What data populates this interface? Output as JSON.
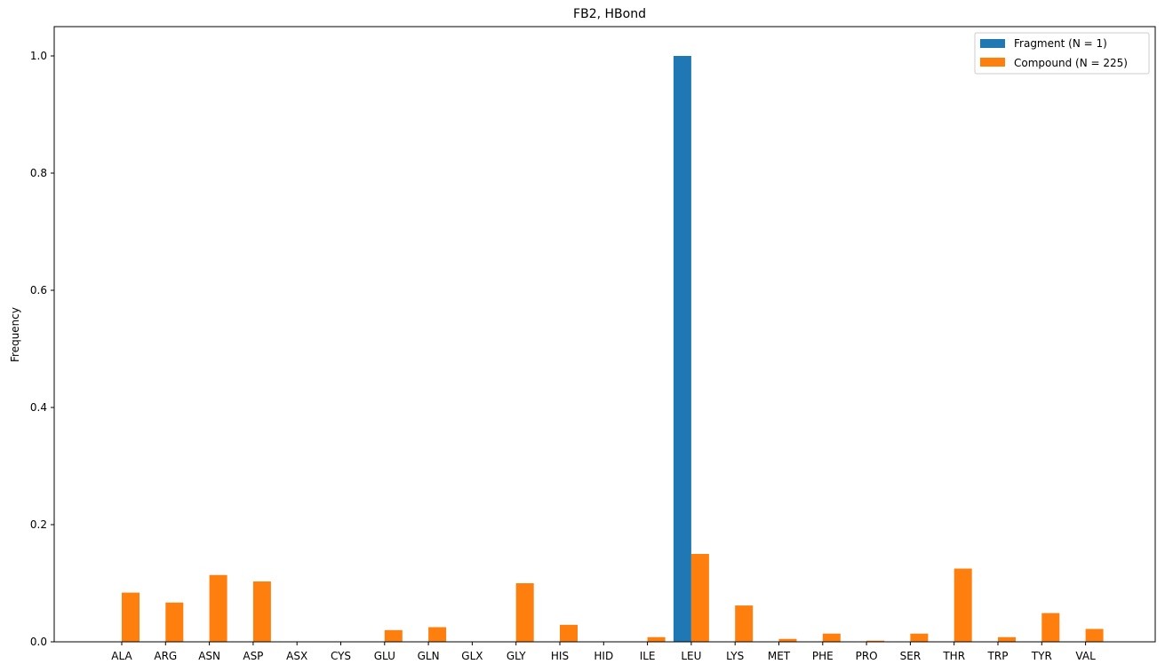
{
  "chart_data": {
    "type": "bar",
    "title": "FB2, HBond",
    "xlabel": "",
    "ylabel": "Frequency",
    "ylim": [
      0,
      1.05
    ],
    "yticks": [
      "0.0",
      "0.2",
      "0.4",
      "0.6",
      "0.8",
      "1.0"
    ],
    "legend_position": "top-right",
    "categories": [
      "ALA",
      "ARG",
      "ASN",
      "ASP",
      "ASX",
      "CYS",
      "GLU",
      "GLN",
      "GLX",
      "GLY",
      "HIS",
      "HID",
      "ILE",
      "LEU",
      "LYS",
      "MET",
      "PHE",
      "PRO",
      "SER",
      "THR",
      "TRP",
      "TYR",
      "VAL"
    ],
    "series": [
      {
        "name": "Fragment (N = 1)",
        "color": "#1f77b4",
        "values": [
          0,
          0,
          0,
          0,
          0,
          0,
          0,
          0,
          0,
          0,
          0,
          0,
          0,
          1.0,
          0,
          0,
          0,
          0,
          0,
          0,
          0,
          0,
          0
        ]
      },
      {
        "name": "Compound (N = 225)",
        "color": "#ff7f0e",
        "values": [
          0.084,
          0.067,
          0.114,
          0.103,
          0,
          0,
          0.02,
          0.025,
          0,
          0.1,
          0.029,
          0,
          0.008,
          0.15,
          0.062,
          0.005,
          0.014,
          0.002,
          0.014,
          0.125,
          0.008,
          0.049,
          0.022
        ]
      }
    ]
  }
}
